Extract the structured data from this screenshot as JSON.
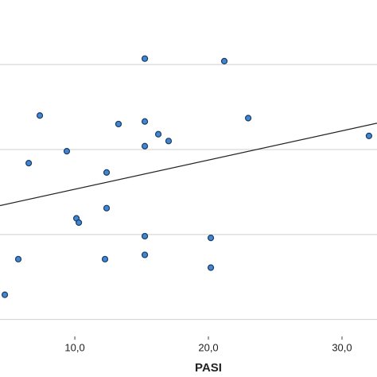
{
  "chart_data": {
    "type": "scatter",
    "x_label": "PASI",
    "x": [
      15.24,
      21.19,
      7.38,
      13.27,
      15.24,
      22.98,
      16.25,
      17.02,
      15.24,
      9.4,
      32.02,
      6.55,
      12.38,
      12.38,
      10.12,
      10.3,
      15.24,
      20.18,
      5.77,
      12.26,
      15.24,
      20.18,
      4.76
    ],
    "y": [
      4.07,
      4.04,
      3.4,
      3.3,
      3.33,
      3.37,
      3.18,
      3.1,
      3.04,
      2.98,
      3.16,
      2.84,
      2.73,
      2.31,
      2.19,
      2.14,
      1.98,
      1.96,
      1.71,
      1.71,
      1.76,
      1.61,
      1.29
    ],
    "color": "#3f87d0",
    "edge_color": "#1c3a66",
    "trend_line": {
      "x": [
        4.4,
        32.62
      ],
      "y": [
        2.34,
        3.31
      ],
      "color": "#222222"
    },
    "xlim": [
      4.4,
      32.62
    ],
    "ylim": [
      0.8,
      4.76
    ],
    "xticks": [
      {
        "value": 10,
        "label": "10,0"
      },
      {
        "value": 20,
        "label": "20,0"
      },
      {
        "value": 30,
        "label": "30,0"
      }
    ],
    "ygrid": [
      1,
      2,
      3,
      4
    ],
    "grid": true
  }
}
